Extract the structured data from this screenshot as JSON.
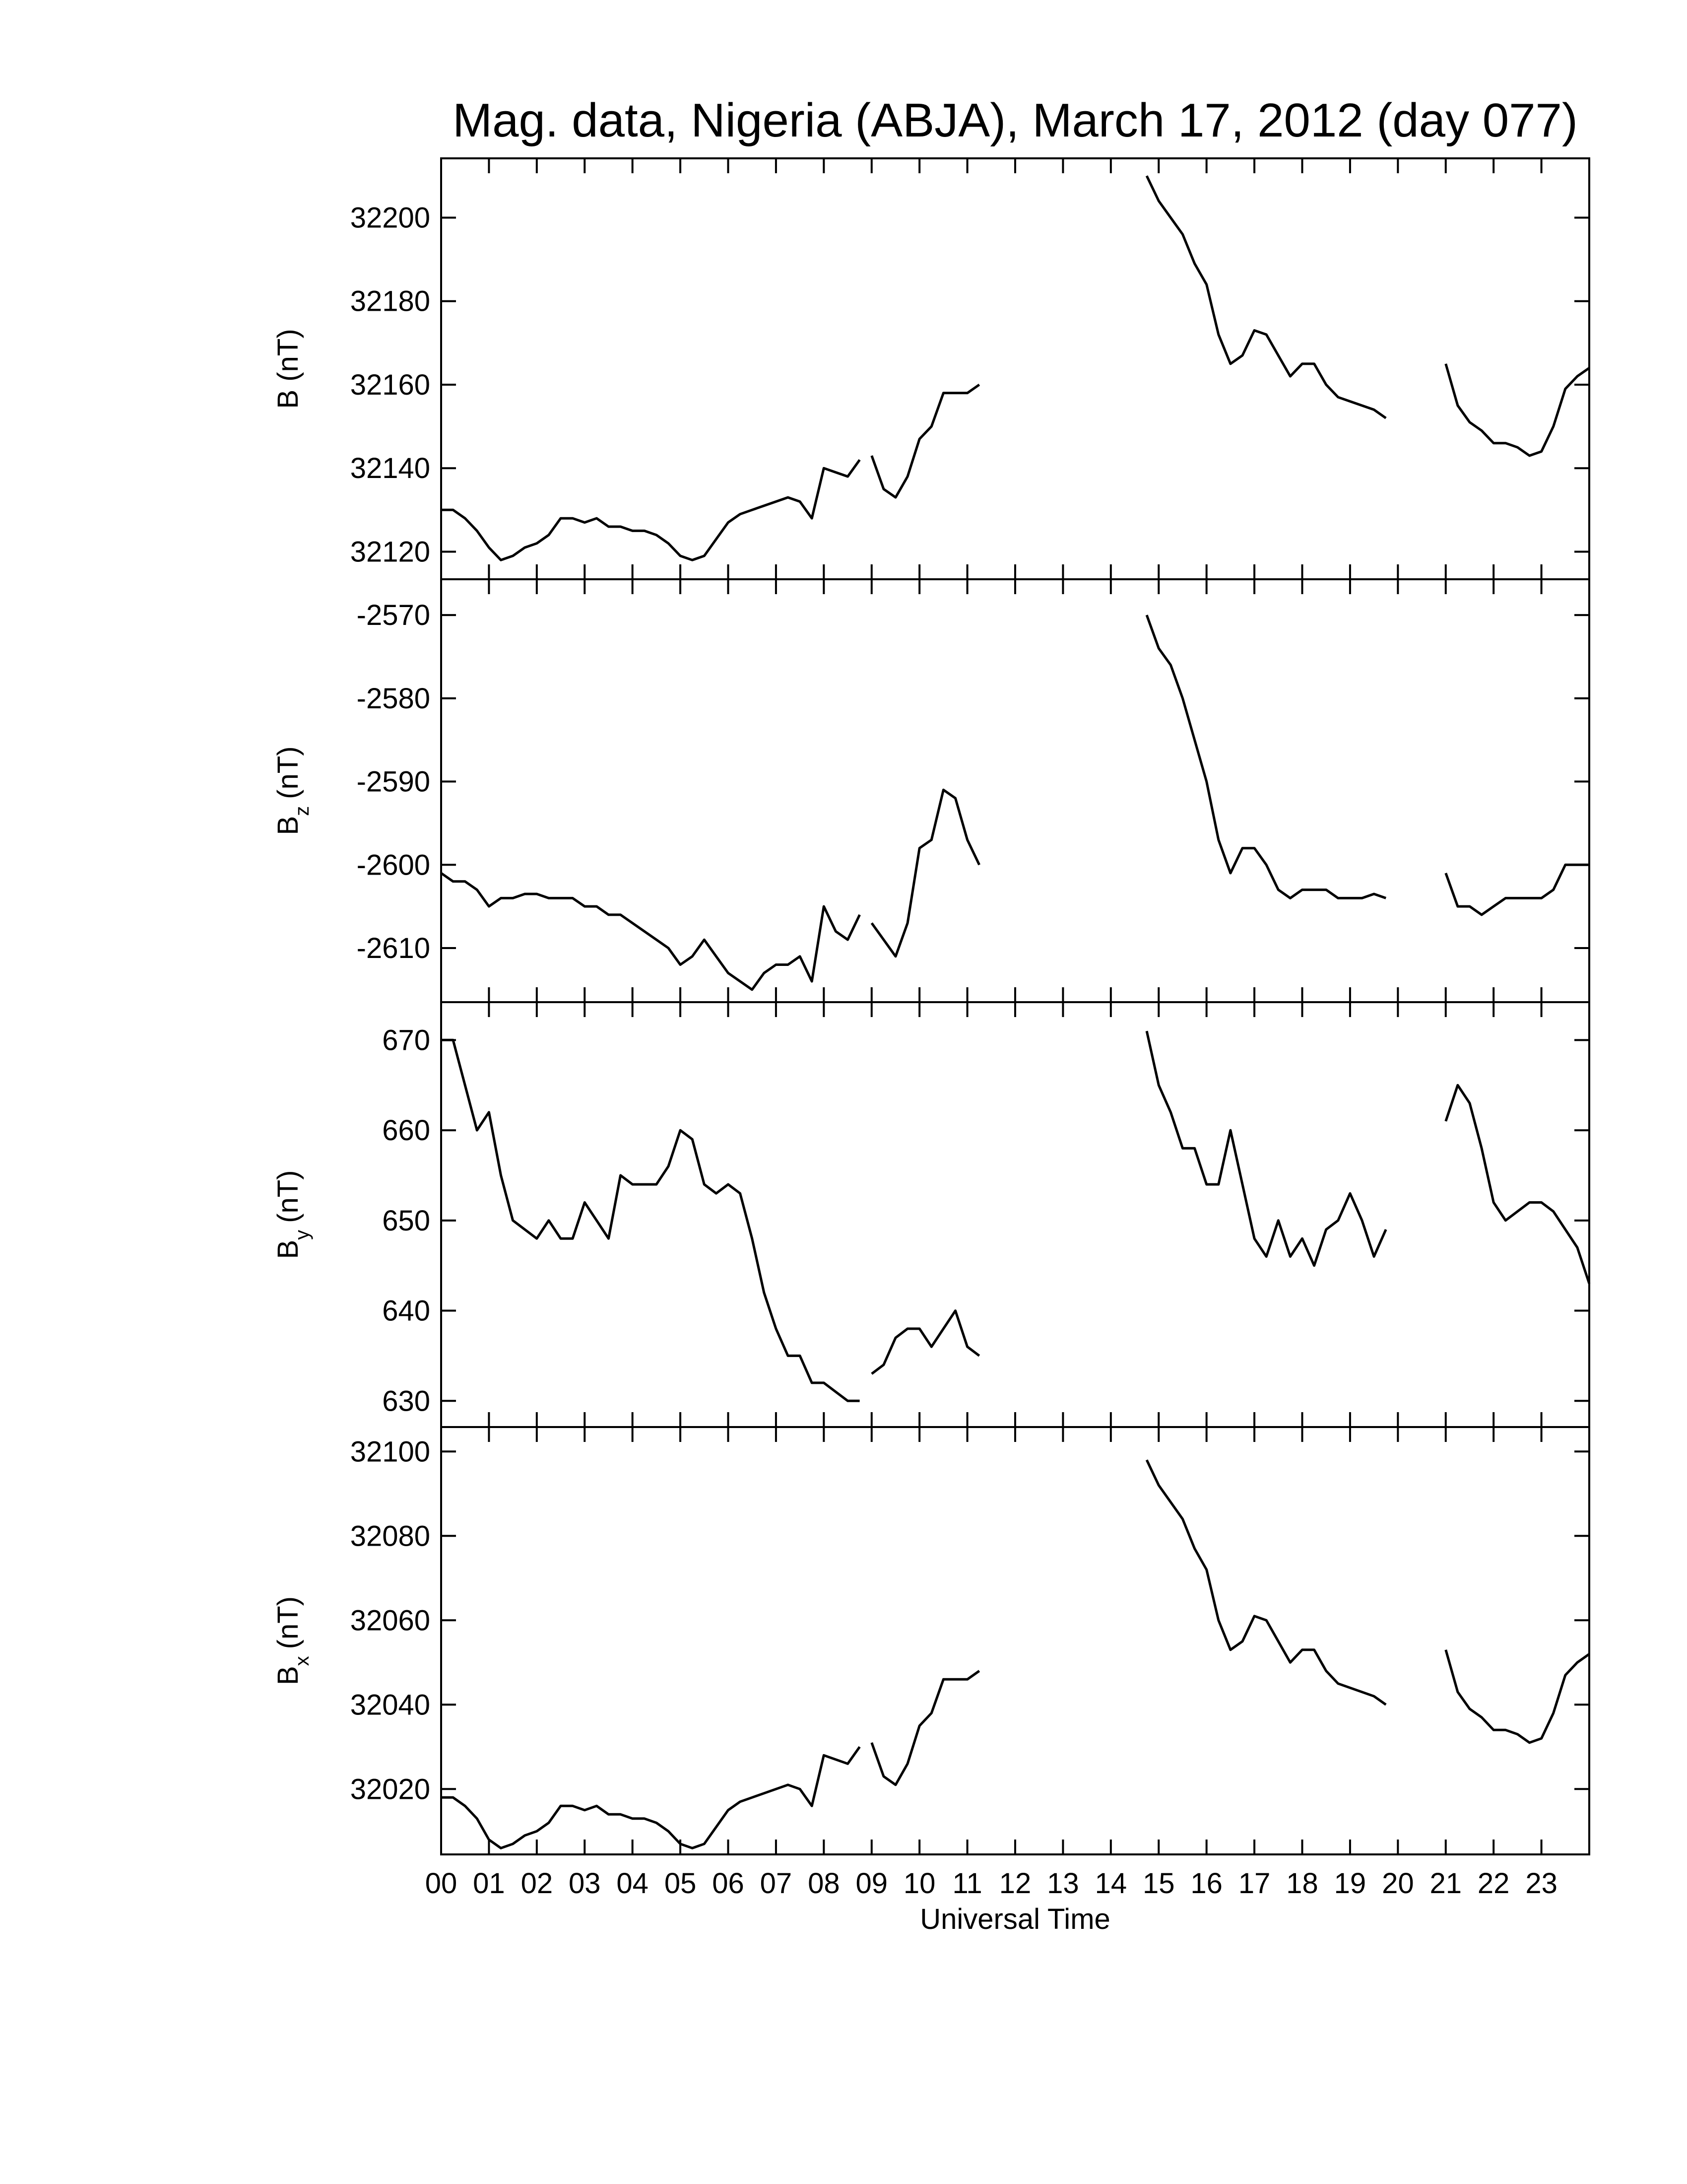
{
  "chart_data": [
    {
      "type": "line",
      "title": "Mag. data, Nigeria (ABJA), March 17, 2012 (day 077)",
      "ylabel": "B (nT)",
      "color": "#000000",
      "x": [
        0,
        0.25,
        0.5,
        0.75,
        1,
        1.25,
        1.5,
        1.75,
        2,
        2.25,
        2.5,
        2.75,
        3,
        3.25,
        3.5,
        3.75,
        4,
        4.25,
        4.5,
        4.75,
        5,
        5.25,
        5.5,
        5.75,
        6,
        6.25,
        6.5,
        6.75,
        7,
        7.25,
        7.5,
        7.75,
        8,
        8.25,
        8.5,
        8.75,
        8.9,
        9,
        9.25,
        9.5,
        9.75,
        10,
        10.25,
        10.5,
        10.75,
        11,
        11.25,
        13,
        14.75,
        15,
        15.25,
        15.5,
        15.75,
        16,
        16.25,
        16.5,
        16.75,
        17,
        17.25,
        17.5,
        17.75,
        18,
        18.25,
        18.5,
        18.75,
        19,
        19.25,
        19.5,
        19.75,
        20.4,
        21,
        21.25,
        21.5,
        21.75,
        22,
        22.25,
        22.5,
        22.75,
        23,
        23.25,
        23.5,
        23.75,
        24
      ],
      "values": [
        32130,
        32130,
        32128,
        32125,
        32121,
        32118,
        32119,
        32121,
        32122,
        32124,
        32128,
        32128,
        32127,
        32128,
        32126,
        32126,
        32125,
        32125,
        32124,
        32122,
        32119,
        32118,
        32119,
        32123,
        32127,
        32129,
        32130,
        32131,
        32132,
        32133,
        32132,
        32128,
        32140,
        32139,
        32138,
        32142,
        null,
        32143,
        32135,
        32133,
        32138,
        32147,
        32150,
        32158,
        32158,
        32158,
        32160,
        null,
        32210,
        32204,
        32200,
        32196,
        32189,
        32184,
        32172,
        32165,
        32167,
        32173,
        32172,
        32167,
        32162,
        32165,
        32165,
        32160,
        32157,
        32156,
        32155,
        32154,
        32152,
        null,
        32165,
        32155,
        32151,
        32149,
        32146,
        32146,
        32145,
        32143,
        32144,
        32150,
        32159,
        32162,
        32164
      ],
      "xlim": [
        0,
        24
      ],
      "ylim": [
        32113.4,
        32214.2
      ],
      "yticks": [
        32120,
        32140,
        32160,
        32180,
        32200
      ]
    },
    {
      "type": "line",
      "ylabel": "B",
      "ylabel_sub": "z",
      "ylabel_unit": "(nT)",
      "color": "#000000",
      "x": [
        0,
        0.25,
        0.5,
        0.75,
        1,
        1.25,
        1.5,
        1.75,
        2,
        2.25,
        2.5,
        2.75,
        3,
        3.25,
        3.5,
        3.75,
        4,
        4.25,
        4.5,
        4.75,
        5,
        5.25,
        5.5,
        5.75,
        6,
        6.25,
        6.5,
        6.75,
        7,
        7.25,
        7.5,
        7.75,
        8,
        8.25,
        8.5,
        8.75,
        8.9,
        9,
        9.25,
        9.5,
        9.75,
        10,
        10.25,
        10.5,
        10.75,
        11,
        11.25,
        13,
        14.75,
        15,
        15.25,
        15.5,
        15.75,
        16,
        16.25,
        16.5,
        16.75,
        17,
        17.25,
        17.5,
        17.75,
        18,
        18.25,
        18.5,
        18.75,
        19,
        19.25,
        19.5,
        19.75,
        20.4,
        21,
        21.25,
        21.5,
        21.75,
        22,
        22.25,
        22.5,
        22.75,
        23,
        23.25,
        23.5,
        23.75,
        24
      ],
      "values": [
        -2601,
        -2602,
        -2602,
        -2603,
        -2605,
        -2604,
        -2604,
        -2603.5,
        -2603.5,
        -2604,
        -2604,
        -2604,
        -2605,
        -2605,
        -2606,
        -2606,
        -2607,
        -2608,
        -2609,
        -2610,
        -2612,
        -2611,
        -2609,
        -2611,
        -2613,
        -2614,
        -2615,
        -2613,
        -2612,
        -2612,
        -2611,
        -2614,
        -2605,
        -2608,
        -2609,
        -2606,
        null,
        -2607,
        -2609,
        -2611,
        -2607,
        -2598,
        -2597,
        -2591,
        -2592,
        -2597,
        -2600,
        null,
        -2570,
        -2574,
        -2576,
        -2580,
        -2585,
        -2590,
        -2597,
        -2601,
        -2598,
        -2598,
        -2600,
        -2603,
        -2604,
        -2603,
        -2603,
        -2603,
        -2604,
        -2604,
        -2604,
        -2603.5,
        -2604,
        null,
        -2601,
        -2605,
        -2605,
        -2606,
        -2605,
        -2604,
        -2604,
        -2604,
        -2604,
        -2603,
        -2600,
        -2600,
        -2600
      ],
      "xlim": [
        0,
        24
      ],
      "ylim": [
        -2616.5,
        -2565.7
      ],
      "yticks": [
        -2610,
        -2600,
        -2590,
        -2580,
        -2570
      ]
    },
    {
      "type": "line",
      "ylabel": "B",
      "ylabel_sub": "y",
      "ylabel_unit": "(nT)",
      "color": "#000000",
      "x": [
        0,
        0.25,
        0.5,
        0.75,
        1,
        1.25,
        1.5,
        1.75,
        2,
        2.25,
        2.5,
        2.75,
        3,
        3.25,
        3.5,
        3.75,
        4,
        4.25,
        4.5,
        4.75,
        5,
        5.25,
        5.5,
        5.75,
        6,
        6.25,
        6.5,
        6.75,
        7,
        7.25,
        7.5,
        7.75,
        8,
        8.25,
        8.5,
        8.75,
        8.9,
        9,
        9.25,
        9.5,
        9.75,
        10,
        10.25,
        10.5,
        10.75,
        11,
        11.25,
        13,
        14.75,
        15,
        15.25,
        15.5,
        15.75,
        16,
        16.25,
        16.5,
        16.75,
        17,
        17.25,
        17.5,
        17.75,
        18,
        18.25,
        18.5,
        18.75,
        19,
        19.25,
        19.5,
        19.75,
        20.4,
        21,
        21.25,
        21.5,
        21.75,
        22,
        22.25,
        22.5,
        22.75,
        23,
        23.25,
        23.5,
        23.75,
        24
      ],
      "values": [
        670,
        670,
        665,
        660,
        662,
        655,
        650,
        649,
        648,
        650,
        648,
        648,
        652,
        650,
        648,
        655,
        654,
        654,
        654,
        656,
        660,
        659,
        654,
        653,
        654,
        653,
        648,
        642,
        638,
        635,
        635,
        632,
        632,
        631,
        630,
        630,
        null,
        633,
        634,
        637,
        638,
        638,
        636,
        638,
        640,
        636,
        635,
        null,
        671,
        665,
        662,
        658,
        658,
        654,
        654,
        660,
        654,
        648,
        646,
        650,
        646,
        648,
        645,
        649,
        650,
        653,
        650,
        646,
        649,
        null,
        661,
        665,
        663,
        658,
        652,
        650,
        651,
        652,
        652,
        651,
        649,
        647,
        643
      ],
      "xlim": [
        0,
        24
      ],
      "ylim": [
        627.1,
        674.2
      ],
      "yticks": [
        630,
        640,
        650,
        660,
        670
      ]
    },
    {
      "type": "line",
      "ylabel": "B",
      "ylabel_sub": "x",
      "ylabel_unit": "(nT)",
      "xlabel": "Universal Time",
      "color": "#000000",
      "x": [
        0,
        0.25,
        0.5,
        0.75,
        1,
        1.25,
        1.5,
        1.75,
        2,
        2.25,
        2.5,
        2.75,
        3,
        3.25,
        3.5,
        3.75,
        4,
        4.25,
        4.5,
        4.75,
        5,
        5.25,
        5.5,
        5.75,
        6,
        6.25,
        6.5,
        6.75,
        7,
        7.25,
        7.5,
        7.75,
        8,
        8.25,
        8.5,
        8.75,
        8.9,
        9,
        9.25,
        9.5,
        9.75,
        10,
        10.25,
        10.5,
        10.75,
        11,
        11.25,
        13,
        14.75,
        15,
        15.25,
        15.5,
        15.75,
        16,
        16.25,
        16.5,
        16.75,
        17,
        17.25,
        17.5,
        17.75,
        18,
        18.25,
        18.5,
        18.75,
        19,
        19.25,
        19.5,
        19.75,
        20.4,
        21,
        21.25,
        21.5,
        21.75,
        22,
        22.25,
        22.5,
        22.75,
        23,
        23.25,
        23.5,
        23.75,
        24
      ],
      "values": [
        32018,
        32018,
        32016,
        32013,
        32008,
        32006,
        32007,
        32009,
        32010,
        32012,
        32016,
        32016,
        32015,
        32016,
        32014,
        32014,
        32013,
        32013,
        32012,
        32010,
        32007,
        32006,
        32007,
        32011,
        32015,
        32017,
        32018,
        32019,
        32020,
        32021,
        32020,
        32016,
        32028,
        32027,
        32026,
        32030,
        null,
        32031,
        32023,
        32021,
        32026,
        32035,
        32038,
        32046,
        32046,
        32046,
        32048,
        null,
        32098,
        32092,
        32088,
        32084,
        32077,
        32072,
        32060,
        32053,
        32055,
        32061,
        32060,
        32055,
        32050,
        32053,
        32053,
        32048,
        32045,
        32044,
        32043,
        32042,
        32040,
        null,
        32053,
        32043,
        32039,
        32037,
        32034,
        32034,
        32033,
        32031,
        32032,
        32038,
        32047,
        32050,
        32052
      ],
      "xlim": [
        0,
        24
      ],
      "ylim": [
        32004.5,
        32105.8
      ],
      "yticks": [
        32020,
        32040,
        32060,
        32080,
        32100
      ],
      "xticks": [
        {
          "value": 0,
          "label": "00"
        },
        {
          "value": 1,
          "label": "01"
        },
        {
          "value": 2,
          "label": "02"
        },
        {
          "value": 3,
          "label": "03"
        },
        {
          "value": 4,
          "label": "04"
        },
        {
          "value": 5,
          "label": "05"
        },
        {
          "value": 6,
          "label": "06"
        },
        {
          "value": 7,
          "label": "07"
        },
        {
          "value": 8,
          "label": "08"
        },
        {
          "value": 9,
          "label": "09"
        },
        {
          "value": 10,
          "label": "10"
        },
        {
          "value": 11,
          "label": "11"
        },
        {
          "value": 12,
          "label": "12"
        },
        {
          "value": 13,
          "label": "13"
        },
        {
          "value": 14,
          "label": "14"
        },
        {
          "value": 15,
          "label": "15"
        },
        {
          "value": 16,
          "label": "16"
        },
        {
          "value": 17,
          "label": "17"
        },
        {
          "value": 18,
          "label": "18"
        },
        {
          "value": 19,
          "label": "19"
        },
        {
          "value": 20,
          "label": "20"
        },
        {
          "value": 21,
          "label": "21"
        },
        {
          "value": 22,
          "label": "22"
        },
        {
          "value": 23,
          "label": "23"
        }
      ]
    }
  ]
}
